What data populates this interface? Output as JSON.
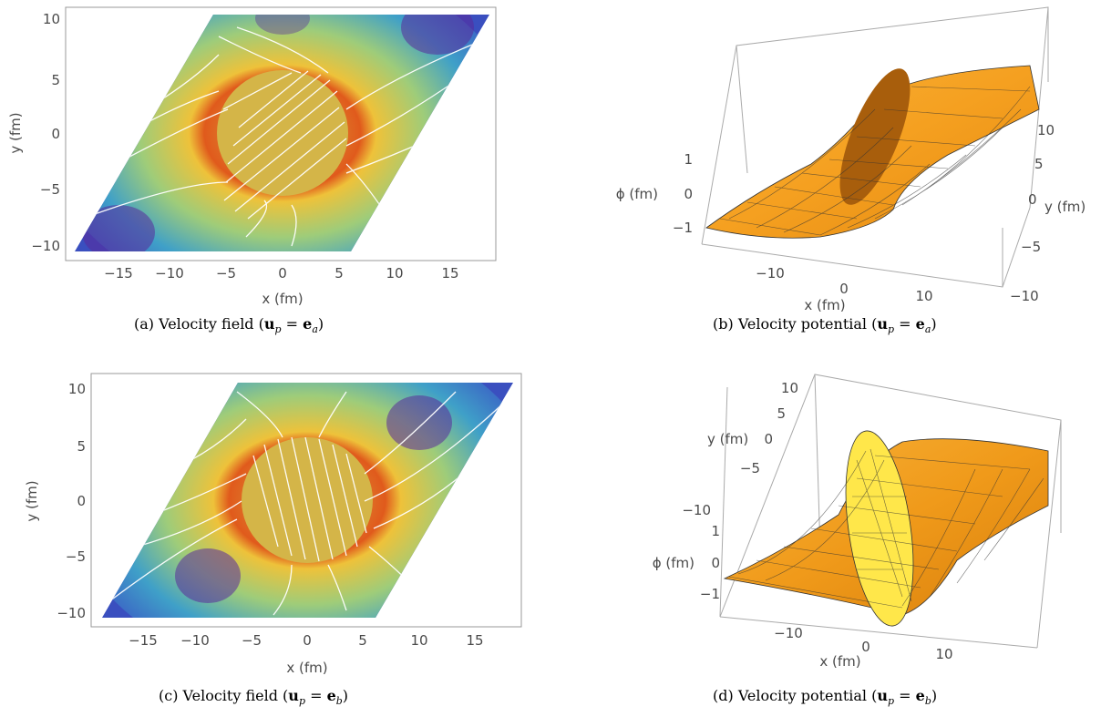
{
  "panels": [
    {
      "id": "a",
      "label": "(a) Velocity field (",
      "label_math": {
        "lhs": "u",
        "lhs_sub": "p",
        "rhs": "e",
        "rhs_sub": "a"
      },
      "label_end": ")",
      "chart_data": {
        "type": "streamplot",
        "xlabel": "x (fm)",
        "ylabel": "y (fm)",
        "xticks": [
          "−15",
          "−10",
          "−5",
          "0",
          "5",
          "10",
          "15"
        ],
        "yticks": [
          "10",
          "5",
          "0",
          "−5",
          "−10"
        ],
        "xlim": [
          -19,
          19
        ],
        "ylim": [
          -11,
          11
        ]
      }
    },
    {
      "id": "b",
      "label": "(b) Velocity potential (",
      "label_math": {
        "lhs": "u",
        "lhs_sub": "p",
        "rhs": "e",
        "rhs_sub": "a"
      },
      "label_end": ")",
      "chart_data": {
        "type": "surface3d",
        "xlabel": "x (fm)",
        "ylabel": "y (fm)",
        "zlabel": "ϕ (fm)",
        "xticks": [
          "−10",
          "0",
          "10"
        ],
        "yticks": [
          "10",
          "5",
          "0",
          "−5",
          "−10"
        ],
        "zticks": [
          "1",
          "0",
          "−1"
        ]
      }
    },
    {
      "id": "c",
      "label": "(c) Velocity field (",
      "label_math": {
        "lhs": "u",
        "lhs_sub": "p",
        "rhs": "e",
        "rhs_sub": "b"
      },
      "label_end": ")",
      "chart_data": {
        "type": "streamplot",
        "xlabel": "x (fm)",
        "ylabel": "y (fm)",
        "xticks": [
          "−15",
          "−10",
          "−5",
          "0",
          "5",
          "10",
          "15"
        ],
        "yticks": [
          "10",
          "5",
          "0",
          "−5",
          "−10"
        ],
        "xlim": [
          -19,
          19
        ],
        "ylim": [
          -11,
          11
        ]
      }
    },
    {
      "id": "d",
      "label": "(d) Velocity potential (",
      "label_math": {
        "lhs": "u",
        "lhs_sub": "p",
        "rhs": "e",
        "rhs_sub": "b"
      },
      "label_end": ")",
      "chart_data": {
        "type": "surface3d",
        "xlabel": "x (fm)",
        "ylabel": "y (fm)",
        "zlabel": "ϕ (fm)",
        "xticks": [
          "−10",
          "0",
          "10"
        ],
        "yticks": [
          "10",
          "5",
          "0",
          "−5",
          "−10"
        ],
        "zticks": [
          "1",
          "0",
          "−1"
        ]
      }
    }
  ],
  "colors": {
    "disk": "#d4b548",
    "surface": "#f5a623",
    "surface_dark": "#b8650a",
    "surface_light": "#ffe24a"
  }
}
